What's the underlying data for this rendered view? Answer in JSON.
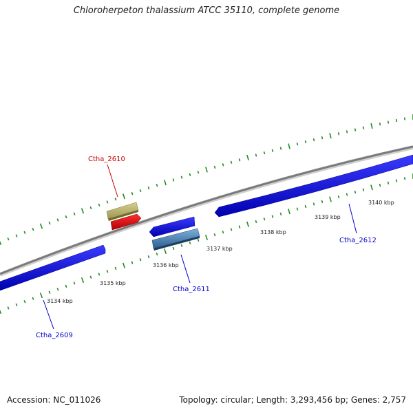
{
  "title": "Chloroherpeton thalassium ATCC 35110, complete genome",
  "footer": {
    "accession": "Accession: NC_011026",
    "summary": "Topology: circular; Length: 3,293,456 bp; Genes: 2,757"
  },
  "ticks": [
    "3134 kbp",
    "3135 kbp",
    "3136 kbp",
    "3137 kbp",
    "3138 kbp",
    "3139 kbp",
    "3140 kbp"
  ],
  "genes": [
    {
      "name": "Ctha_2609",
      "color": "#0000cc"
    },
    {
      "name": "Ctha_2610",
      "color": "#cc0000"
    },
    {
      "name": "Ctha_2611",
      "color": "#0000cc"
    },
    {
      "name": "Ctha_2612",
      "color": "#0000cc"
    }
  ],
  "colors": {
    "backbone": "#888888",
    "forward_track_ticks": "#228b22",
    "reverse_cds": "#0000ee",
    "forward_cds": "#ee0000",
    "rna_feature_forward": "#bdb76b",
    "rna_feature_reverse": "#4682b4"
  }
}
